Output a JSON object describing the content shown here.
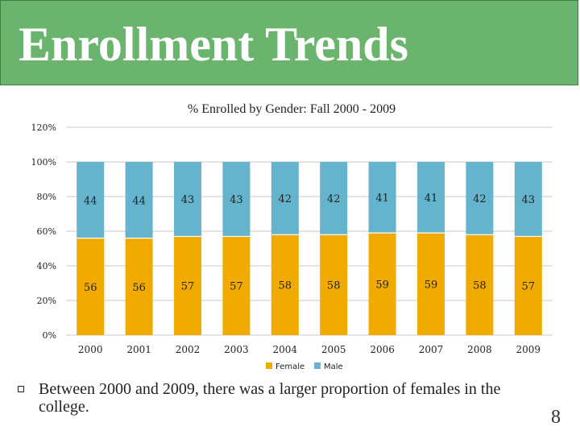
{
  "slide": {
    "title": "Enrollment Trends",
    "bullet": "Between 2000 and 2009, there was a larger proportion of females in the college.",
    "page_number": "8"
  },
  "colors": {
    "female": "#f0aa00",
    "male": "#63b4cc",
    "grid": "#c8c8c8",
    "text": "#222222"
  },
  "chart_data": {
    "type": "bar",
    "stacked": true,
    "title": "% Enrolled by Gender: Fall 2000 - 2009",
    "categories": [
      "2000",
      "2001",
      "2002",
      "2003",
      "2004",
      "2005",
      "2006",
      "2007",
      "2008",
      "2009"
    ],
    "series": [
      {
        "name": "Female",
        "values": [
          56,
          56,
          57,
          57,
          58,
          58,
          59,
          59,
          58,
          57
        ]
      },
      {
        "name": "Male",
        "values": [
          44,
          44,
          43,
          43,
          42,
          42,
          41,
          41,
          42,
          43
        ]
      }
    ],
    "y_ticks": [
      "0%",
      "20%",
      "40%",
      "60%",
      "80%",
      "100%",
      "120%"
    ],
    "ylim": [
      0,
      120
    ],
    "grid": true,
    "legend": "bottom-center",
    "xlabel": "",
    "ylabel": ""
  }
}
